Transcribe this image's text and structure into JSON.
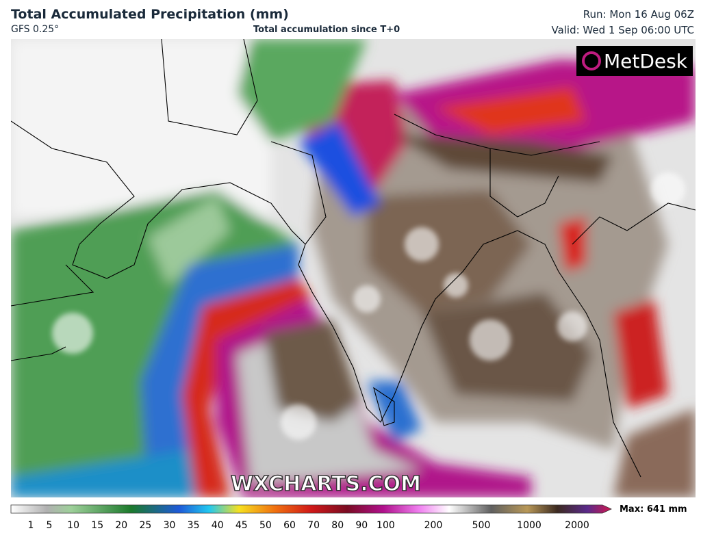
{
  "header": {
    "title": "Total Accumulated Precipitation (mm)",
    "model": "GFS 0.25°",
    "subtitle": "Total accumulation since T+0",
    "run": "Run: Mon 16 Aug 06Z",
    "valid": "Valid: Wed 1 Sep 06:00 UTC"
  },
  "logo": "MetDesk",
  "watermark": "WXCHARTS.COM",
  "legend": {
    "ticks": [
      1,
      5,
      10,
      15,
      20,
      25,
      30,
      35,
      40,
      45,
      50,
      60,
      70,
      80,
      90,
      100,
      200,
      500,
      1000,
      2000
    ],
    "max": "Max: 641 mm"
  }
}
